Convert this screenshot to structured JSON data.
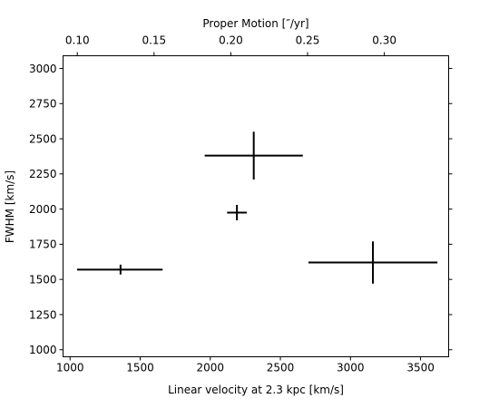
{
  "chart_data": {
    "type": "scatter",
    "title": "",
    "xlabel": "Linear velocity at 2.3 kpc [km/s]",
    "ylabel": "FWHM [km/s]",
    "top_xlabel": "Proper Motion [″/yr]",
    "xlim": [
      950,
      3700
    ],
    "ylim": [
      950,
      3090
    ],
    "top_xlim": [
      0.0907,
      0.3419
    ],
    "x_ticks": [
      1000,
      1500,
      2000,
      2500,
      3000,
      3500
    ],
    "y_ticks": [
      1000,
      1250,
      1500,
      1750,
      2000,
      2250,
      2500,
      2750,
      3000
    ],
    "top_ticks": [
      0.1,
      0.15,
      0.2,
      0.25,
      0.3
    ],
    "x_tick_labels": [
      "1000",
      "1500",
      "2000",
      "2500",
      "3000",
      "3500"
    ],
    "y_tick_labels": [
      "1000",
      "1250",
      "1500",
      "1750",
      "2000",
      "2250",
      "2500",
      "2750",
      "3000"
    ],
    "top_tick_labels": [
      "0.10",
      "0.15",
      "0.20",
      "0.25",
      "0.30"
    ],
    "grid": false,
    "marker": "none",
    "error_bar_color": "#000000",
    "points": [
      {
        "x": 1360,
        "xerr_low": 310,
        "xerr_high": 300,
        "y": 1570,
        "yerr_low": 35,
        "yerr_high": 35
      },
      {
        "x": 2310,
        "xerr_low": 350,
        "xerr_high": 350,
        "y": 2380,
        "yerr_low": 170,
        "yerr_high": 170
      },
      {
        "x": 2190,
        "xerr_low": 70,
        "xerr_high": 70,
        "y": 1975,
        "yerr_low": 55,
        "yerr_high": 55
      },
      {
        "x": 3160,
        "xerr_low": 460,
        "xerr_high": 460,
        "y": 1620,
        "yerr_low": 150,
        "yerr_high": 150
      }
    ]
  }
}
